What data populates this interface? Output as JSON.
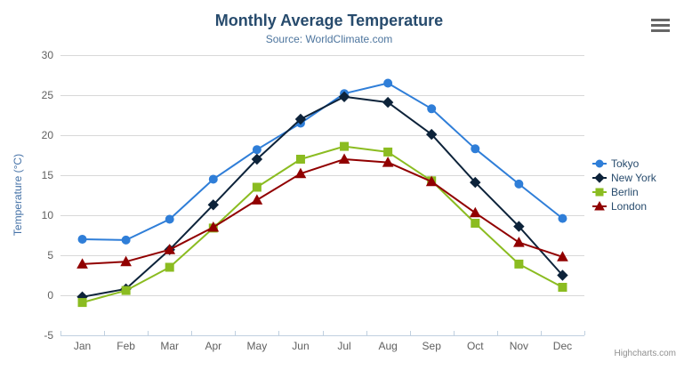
{
  "credits": {
    "label": "Highcharts.com"
  },
  "export_menu": {
    "icon": "hamburger-icon"
  },
  "chart_data": {
    "type": "line",
    "title": "Monthly Average Temperature",
    "subtitle": "Source: WorldClimate.com",
    "categories": [
      "Jan",
      "Feb",
      "Mar",
      "Apr",
      "May",
      "Jun",
      "Jul",
      "Aug",
      "Sep",
      "Oct",
      "Nov",
      "Dec"
    ],
    "xlabel": "",
    "ylabel": "Temperature (°C)",
    "ylim": [
      -5,
      30
    ],
    "ytick_step": 5,
    "yticks": [
      -5,
      0,
      5,
      10,
      15,
      20,
      25,
      30
    ],
    "grid": true,
    "legend_position": "right",
    "series": [
      {
        "name": "Tokyo",
        "color": "#2f7ed8",
        "marker": "circle",
        "values": [
          7.0,
          6.9,
          9.5,
          14.5,
          18.2,
          21.5,
          25.2,
          26.5,
          23.3,
          18.3,
          13.9,
          9.6
        ]
      },
      {
        "name": "New York",
        "color": "#0d233a",
        "marker": "diamond",
        "values": [
          -0.2,
          0.8,
          5.7,
          11.3,
          17.0,
          22.0,
          24.8,
          24.1,
          20.1,
          14.1,
          8.6,
          2.5
        ]
      },
      {
        "name": "Berlin",
        "color": "#8bbc21",
        "marker": "square",
        "values": [
          -0.9,
          0.6,
          3.5,
          8.4,
          13.5,
          17.0,
          18.6,
          17.9,
          14.3,
          9.0,
          3.9,
          1.0
        ]
      },
      {
        "name": "London",
        "color": "#910000",
        "marker": "triangle",
        "values": [
          3.9,
          4.2,
          5.7,
          8.5,
          11.9,
          15.2,
          17.0,
          16.6,
          14.2,
          10.3,
          6.6,
          4.8
        ]
      }
    ],
    "colors": {
      "grid": "#d8d8d8",
      "axis_line": "#c0d0e0",
      "tick": "#c0d0e0",
      "axis_label": "#606060",
      "title": "#274b6d",
      "subtitle": "#4d759e",
      "y_axis_title": "#4572a7",
      "legend_text": "#274b6d",
      "credits_text": "#909090"
    }
  }
}
